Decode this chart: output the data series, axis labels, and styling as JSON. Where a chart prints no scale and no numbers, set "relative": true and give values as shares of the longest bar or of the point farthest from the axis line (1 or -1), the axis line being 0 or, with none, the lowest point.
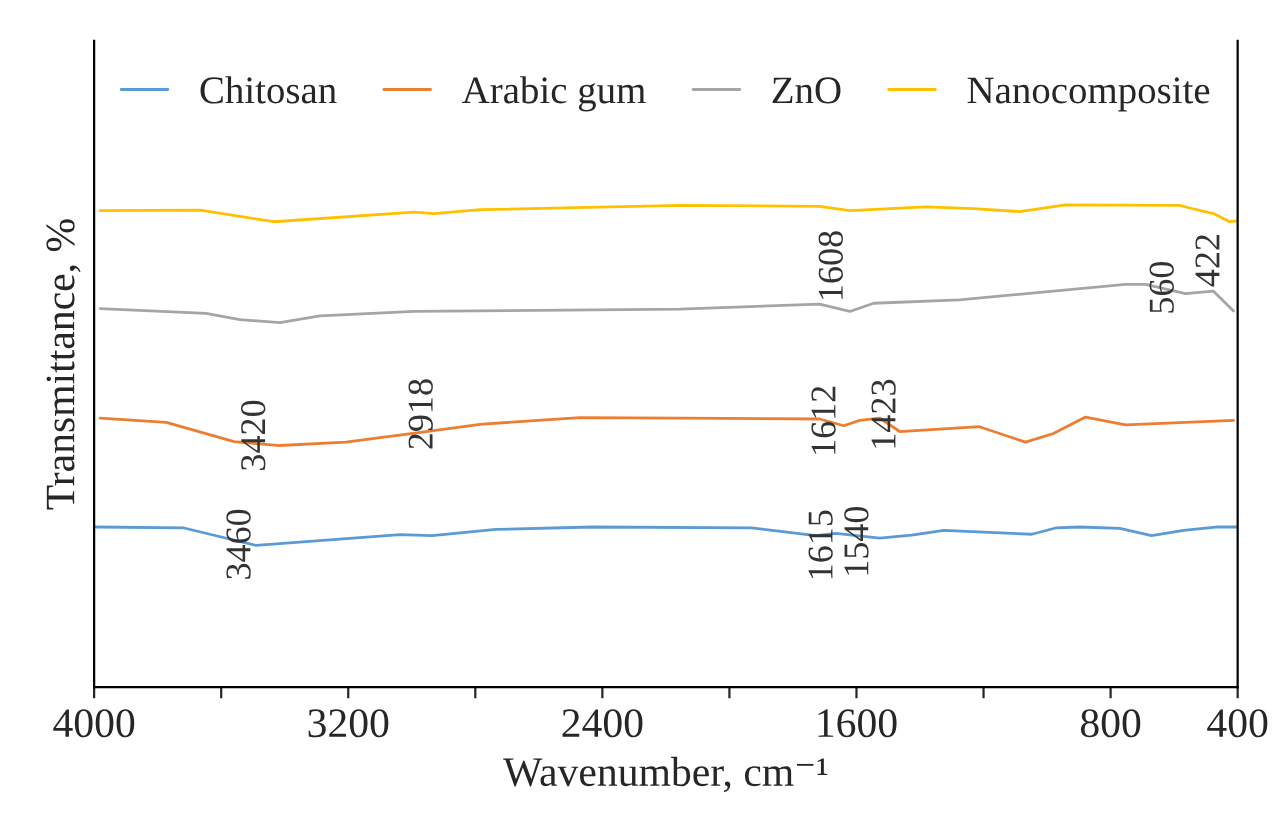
{
  "chart_data": {
    "type": "line",
    "relative": true,
    "xlabel": "Wavenumber, cm⁻¹",
    "ylabel": "Transmittance, %",
    "xlim": [
      4000,
      400
    ],
    "xticks": [
      4000,
      {
        "value": 3600,
        "label": null
      },
      3200,
      {
        "value": 2800,
        "label": null
      },
      2400,
      {
        "value": 2000,
        "label": null
      },
      1600,
      {
        "value": 1200,
        "label": null
      },
      800,
      400
    ],
    "legend": "top",
    "grid": false,
    "marker": "none",
    "line_style": "solid",
    "series": [
      {
        "name": "Chitosan",
        "color": "#5b9bd5",
        "x": [
          3994,
          3717,
          3490,
          3037,
          2936,
          2735,
          2433,
          1930,
          1728,
          1665,
          1527,
          1426,
          1325,
          1048,
          973,
          897,
          771,
          671,
          570,
          469,
          400
        ],
        "values": [
          0.332,
          0.33,
          0.294,
          0.316,
          0.314,
          0.327,
          0.332,
          0.33,
          0.314,
          0.319,
          0.309,
          0.315,
          0.325,
          0.317,
          0.33,
          0.332,
          0.329,
          0.314,
          0.325,
          0.332,
          0.332
        ]
      },
      {
        "name": "Arabic gum",
        "color": "#ed7d31",
        "x": [
          3981,
          3773,
          3559,
          3415,
          3207,
          2955,
          2785,
          2471,
          2156,
          1716,
          1640,
          1590,
          1527,
          1464,
          1213,
          1068,
          980,
          879,
          753,
          413
        ],
        "values": [
          0.558,
          0.549,
          0.509,
          0.501,
          0.508,
          0.53,
          0.545,
          0.559,
          0.558,
          0.556,
          0.542,
          0.553,
          0.558,
          0.53,
          0.54,
          0.508,
          0.526,
          0.56,
          0.544,
          0.553
        ]
      },
      {
        "name": "ZnO",
        "color": "#a5a5a5",
        "x": [
          3981,
          3648,
          3541,
          3415,
          3289,
          2993,
          2156,
          1716,
          1621,
          1546,
          1276,
          753,
          690,
          564,
          476,
          413
        ],
        "values": [
          0.785,
          0.775,
          0.762,
          0.756,
          0.77,
          0.779,
          0.784,
          0.794,
          0.779,
          0.796,
          0.803,
          0.835,
          0.835,
          0.816,
          0.821,
          0.78
        ]
      },
      {
        "name": "Nanocomposite",
        "color": "#ffc000",
        "x": [
          3981,
          3666,
          3434,
          2993,
          2930,
          2785,
          2156,
          1716,
          1621,
          1382,
          1231,
          1086,
          942,
          583,
          541,
          476,
          425,
          400
        ],
        "values": [
          0.988,
          0.989,
          0.965,
          0.985,
          0.982,
          0.99,
          0.999,
          0.997,
          0.988,
          0.996,
          0.992,
          0.986,
          1.0,
          0.999,
          0.992,
          0.982,
          0.965,
          0.967
        ]
      }
    ],
    "annotations": [
      {
        "text": "3460",
        "x": 3460,
        "y": 0.296
      },
      {
        "text": "3420",
        "x": 3420,
        "y": 0.501
      },
      {
        "text": "2918",
        "x": 2918,
        "y": 0.533
      },
      {
        "text": "1612",
        "x": 1612,
        "y": 0.548
      },
      {
        "text": "1423",
        "x": 1423,
        "y": 0.532
      },
      {
        "text": "1608",
        "x": 1608,
        "y": 0.782
      },
      {
        "text": "560",
        "x": 560,
        "y": 0.816
      },
      {
        "text": "422",
        "x": 422,
        "y": 0.786
      },
      {
        "text": "1615",
        "x": 1615,
        "y": 0.315
      },
      {
        "text": "1540",
        "x": 1540,
        "y": 0.31
      }
    ]
  }
}
